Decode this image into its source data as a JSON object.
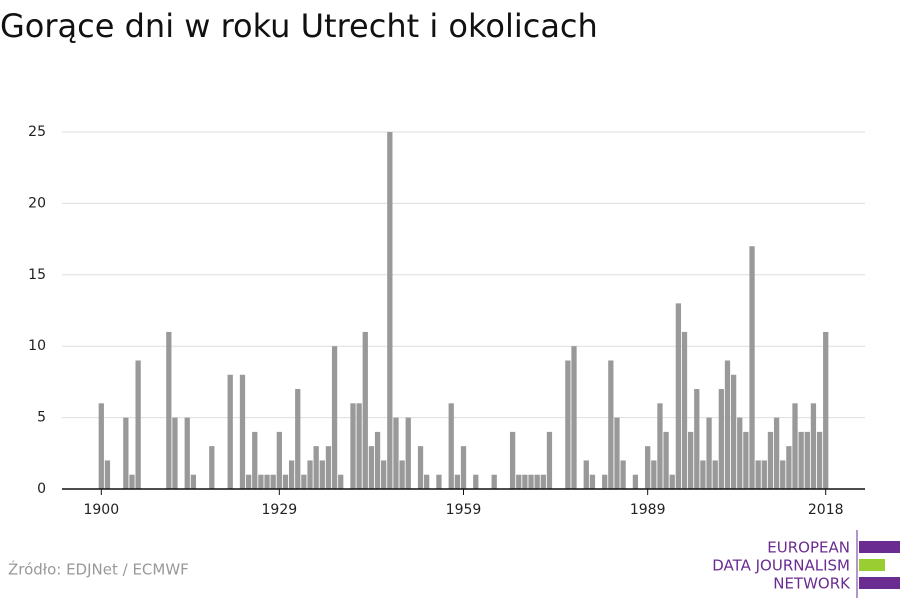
{
  "chart_data": {
    "type": "bar",
    "title": "Gorące dni w roku Utrecht i okolicach",
    "source": "Źródło: EDJNet / ECMWF",
    "x": [
      1900,
      1901,
      1902,
      1903,
      1904,
      1905,
      1906,
      1907,
      1908,
      1909,
      1910,
      1911,
      1912,
      1913,
      1914,
      1915,
      1916,
      1917,
      1918,
      1919,
      1920,
      1921,
      1922,
      1923,
      1924,
      1925,
      1926,
      1927,
      1928,
      1929,
      1930,
      1931,
      1932,
      1933,
      1934,
      1935,
      1936,
      1937,
      1938,
      1939,
      1940,
      1941,
      1942,
      1943,
      1944,
      1945,
      1946,
      1947,
      1948,
      1949,
      1950,
      1951,
      1952,
      1953,
      1954,
      1955,
      1956,
      1957,
      1958,
      1959,
      1960,
      1961,
      1962,
      1963,
      1964,
      1965,
      1966,
      1967,
      1968,
      1969,
      1970,
      1971,
      1972,
      1973,
      1974,
      1975,
      1976,
      1977,
      1978,
      1979,
      1980,
      1981,
      1982,
      1983,
      1984,
      1985,
      1986,
      1987,
      1988,
      1989,
      1990,
      1991,
      1992,
      1993,
      1994,
      1995,
      1996,
      1997,
      1998,
      1999,
      2000,
      2001,
      2002,
      2003,
      2004,
      2005,
      2006,
      2007,
      2008,
      2009,
      2010,
      2011,
      2012,
      2013,
      2014,
      2015,
      2016,
      2017,
      2018
    ],
    "values": [
      6,
      2,
      0,
      0,
      5,
      1,
      9,
      0,
      0,
      0,
      0,
      11,
      5,
      0,
      5,
      1,
      0,
      0,
      3,
      0,
      0,
      8,
      0,
      8,
      1,
      4,
      1,
      1,
      1,
      4,
      1,
      2,
      7,
      1,
      2,
      3,
      2,
      3,
      10,
      1,
      0,
      6,
      6,
      11,
      3,
      4,
      2,
      25,
      5,
      2,
      5,
      0,
      3,
      1,
      0,
      1,
      0,
      6,
      1,
      3,
      0,
      1,
      0,
      0,
      1,
      0,
      0,
      4,
      1,
      1,
      1,
      1,
      1,
      4,
      0,
      0,
      9,
      10,
      0,
      2,
      1,
      0,
      1,
      9,
      5,
      2,
      0,
      1,
      0,
      3,
      2,
      6,
      4,
      1,
      13,
      11,
      4,
      7,
      2,
      5,
      2,
      7,
      9,
      8,
      5,
      4,
      17,
      2,
      2,
      4,
      5,
      2,
      3,
      6,
      4,
      4,
      6,
      4,
      11
    ],
    "color": "#999999",
    "xlim": [
      1893.6,
      2024.4
    ],
    "xticks": [
      1900,
      1929,
      1959,
      1989,
      2018
    ],
    "ylim": [
      0,
      25
    ],
    "yticks": [
      0,
      5,
      10,
      15,
      20,
      25
    ],
    "grid": true
  },
  "logo": {
    "lines": [
      "EUROPEAN",
      "DATA JOURNALISM",
      "NETWORK"
    ],
    "color": "#6b2c91",
    "accent": "#9acd32"
  }
}
